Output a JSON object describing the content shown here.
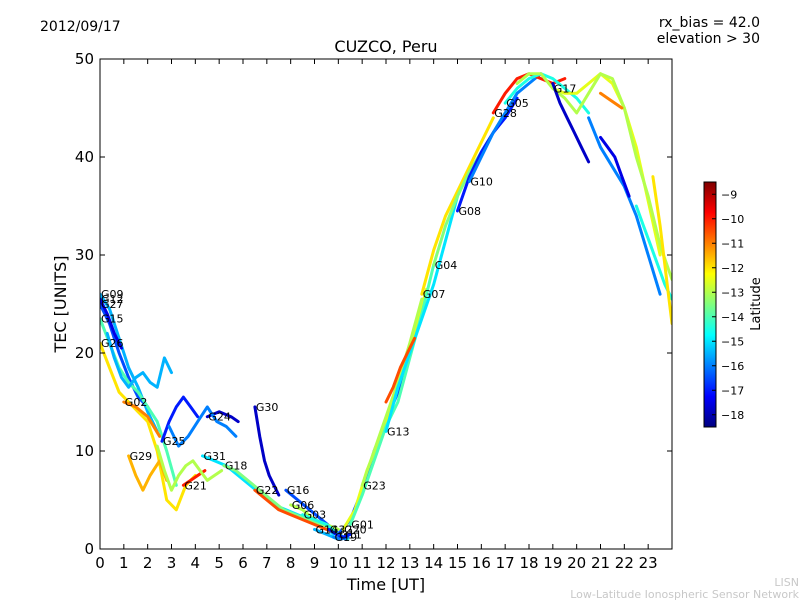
{
  "header": {
    "date": "2012/09/17",
    "rx_bias": "rx_bias = 42.0",
    "elevation": "elevation > 30"
  },
  "footer": {
    "credit_line1": "LISN",
    "credit_line2": "Low-Latitude Ionospheric Sensor Network"
  },
  "chart_data": {
    "type": "scatter",
    "title": "CUZCO, Peru",
    "xlabel": "Time [UT]",
    "ylabel": "TEC [UNITS]",
    "xlim": [
      0,
      24
    ],
    "ylim": [
      0,
      50
    ],
    "xticks": [
      0,
      1,
      2,
      3,
      4,
      5,
      6,
      7,
      8,
      9,
      10,
      11,
      12,
      13,
      14,
      15,
      16,
      17,
      18,
      19,
      20,
      21,
      22,
      23
    ],
    "yticks": [
      0,
      10,
      20,
      30,
      40,
      50
    ],
    "colorbar": {
      "label": "Latitude",
      "range": [
        -18.5,
        -8.5
      ],
      "ticks": [
        -9,
        -10,
        -11,
        -12,
        -13,
        -14,
        -15,
        -16,
        -17,
        -18
      ],
      "stops": [
        "#00007f",
        "#0000ff",
        "#007fff",
        "#00ffff",
        "#7fff7f",
        "#ffff00",
        "#ff7f00",
        "#ff0000",
        "#7f0000"
      ],
      "colormap_note": "-18 blue to -9 red"
    },
    "series": [
      {
        "name": "G09",
        "lat": -15.5,
        "x": [
          0.0,
          0.4,
          0.8,
          1.2,
          1.6,
          2.0,
          2.4
        ],
        "y": [
          26.0,
          24.5,
          21.5,
          18.5,
          16.5,
          14.0,
          12.0
        ]
      },
      {
        "name": "G27",
        "lat": -16.5,
        "x": [
          0.0,
          0.4,
          0.8,
          1.2,
          1.6,
          2.0
        ],
        "y": [
          25.0,
          23.0,
          20.0,
          17.5,
          15.5,
          14.5
        ]
      },
      {
        "name": "G12",
        "lat": -17.5,
        "x": [
          0.0,
          0.3,
          0.6,
          0.9
        ],
        "y": [
          25.5,
          24.0,
          22.0,
          20.5
        ]
      },
      {
        "name": "G15",
        "lat": -14.0,
        "x": [
          0.0,
          0.4,
          0.8,
          1.2,
          1.6,
          2.0,
          2.4,
          2.8,
          3.2
        ],
        "y": [
          23.5,
          21.0,
          18.5,
          17.0,
          16.0,
          14.5,
          13.0,
          10.0,
          6.5
        ]
      },
      {
        "name": "G26",
        "lat": -12.0,
        "x": [
          0.0,
          0.4,
          0.8,
          1.2,
          1.6,
          2.0,
          2.4,
          2.8,
          3.2,
          3.6,
          4.0
        ],
        "y": [
          21.0,
          18.5,
          16.0,
          15.0,
          14.0,
          13.0,
          10.0,
          5.0,
          4.0,
          6.5,
          7.5
        ]
      },
      {
        "name": "G02",
        "lat": -11.0,
        "x": [
          1.0,
          1.5,
          2.0,
          2.5
        ],
        "y": [
          15.0,
          14.5,
          13.5,
          11.5
        ]
      },
      {
        "name": "G29",
        "lat": -11.5,
        "x": [
          1.2,
          1.5,
          1.8,
          2.1,
          2.5,
          2.8
        ],
        "y": [
          9.5,
          7.5,
          6.0,
          7.5,
          9.0,
          7.0
        ]
      },
      {
        "name": "G25",
        "lat": -17.0,
        "x": [
          2.6,
          2.9,
          3.2,
          3.5,
          3.8,
          4.1
        ],
        "y": [
          11.0,
          13.0,
          14.5,
          15.5,
          14.5,
          13.5
        ]
      },
      {
        "name": "G21",
        "lat": -10.0,
        "x": [
          3.5,
          3.8,
          4.1,
          4.4
        ],
        "y": [
          6.5,
          7.0,
          7.5,
          8.0
        ]
      },
      {
        "name": "G24",
        "lat": -17.8,
        "x": [
          4.5,
          5.0,
          5.5,
          5.8
        ],
        "y": [
          13.5,
          14.0,
          13.5,
          13.0
        ]
      },
      {
        "name": "G31",
        "lat": -15.0,
        "x": [
          4.3,
          4.8,
          5.3,
          5.8,
          6.3,
          6.8,
          7.3,
          7.8,
          8.3,
          8.8,
          9.3,
          9.8
        ],
        "y": [
          9.5,
          9.0,
          8.5,
          7.5,
          6.5,
          5.5,
          4.5,
          4.0,
          3.5,
          3.0,
          2.5,
          1.5
        ]
      },
      {
        "name": "G18",
        "lat": -13.5,
        "x": [
          5.2,
          5.7,
          6.2,
          6.7,
          7.2,
          7.7,
          8.2,
          8.7,
          9.2,
          9.7
        ],
        "y": [
          8.5,
          8.0,
          7.0,
          6.0,
          5.0,
          4.0,
          3.5,
          3.0,
          2.5,
          2.0
        ]
      },
      {
        "name": "G30",
        "lat": -17.8,
        "x": [
          6.5,
          6.7,
          6.9,
          7.1,
          7.3,
          7.5
        ],
        "y": [
          14.5,
          11.5,
          9.0,
          7.5,
          6.5,
          5.5
        ]
      },
      {
        "name": "G22",
        "lat": -10.5,
        "x": [
          6.5,
          7.0,
          7.5,
          8.0,
          8.5,
          9.0,
          9.5,
          10.0
        ],
        "y": [
          6.0,
          5.0,
          4.0,
          3.5,
          3.0,
          2.5,
          2.0,
          1.5
        ]
      },
      {
        "name": "G16",
        "lat": -16.5,
        "x": [
          7.8,
          8.3,
          8.8,
          9.3,
          9.8,
          10.3
        ],
        "y": [
          6.0,
          5.0,
          4.0,
          3.0,
          2.0,
          1.0
        ]
      },
      {
        "name": "G06",
        "lat": -13.0,
        "x": [
          8.0,
          8.5,
          9.0,
          9.5,
          10.0
        ],
        "y": [
          4.5,
          4.0,
          3.0,
          2.5,
          2.0
        ]
      },
      {
        "name": "G03",
        "lat": -14.5,
        "x": [
          8.5,
          9.0,
          9.5,
          10.0,
          10.4
        ],
        "y": [
          3.5,
          3.0,
          2.5,
          1.5,
          1.0
        ]
      },
      {
        "name": "G14",
        "lat": -15.5,
        "x": [
          9.0,
          9.5,
          10.0
        ],
        "y": [
          2.0,
          1.5,
          1.0
        ]
      },
      {
        "name": "G19",
        "lat": -16.0,
        "x": [
          9.8,
          10.1,
          10.4
        ],
        "y": [
          1.2,
          1.0,
          1.2
        ]
      },
      {
        "name": "G32",
        "lat": -17.0,
        "x": [
          9.6,
          9.9,
          10.2,
          10.5
        ],
        "y": [
          2.0,
          1.5,
          1.2,
          1.5
        ]
      },
      {
        "name": "G11",
        "lat": -16.5,
        "x": [
          10.0,
          10.5,
          11.0,
          11.5,
          12.0,
          12.5,
          13.0,
          13.5
        ],
        "y": [
          1.5,
          3.0,
          6.0,
          10.0,
          13.0,
          16.0,
          20.5,
          25.0
        ]
      },
      {
        "name": "G20",
        "lat": -12.5,
        "x": [
          10.2,
          10.7,
          11.2,
          11.7,
          12.2,
          12.7,
          13.2,
          13.7
        ],
        "y": [
          2.0,
          4.0,
          8.0,
          11.0,
          14.5,
          18.0,
          22.0,
          26.5
        ]
      },
      {
        "name": "G01",
        "lat": -14.0,
        "x": [
          10.5,
          11.0,
          11.5,
          12.0,
          12.5,
          13.0,
          13.5,
          14.0
        ],
        "y": [
          2.5,
          5.5,
          9.0,
          12.5,
          15.0,
          19.5,
          24.0,
          29.0
        ]
      },
      {
        "name": "G23",
        "lat": -13.0,
        "x": [
          11.0,
          11.5,
          12.0,
          12.5,
          13.0,
          13.5
        ],
        "y": [
          6.5,
          10.0,
          13.5,
          17.0,
          21.0,
          25.5
        ]
      },
      {
        "name": "G13",
        "lat": -15.0,
        "x": [
          12.0,
          12.5,
          13.0,
          13.5,
          14.0,
          14.5,
          15.0
        ],
        "y": [
          12.0,
          16.5,
          20.0,
          23.5,
          27.0,
          31.5,
          36.0
        ]
      },
      {
        "name": "G07",
        "lat": -12.0,
        "x": [
          13.5,
          14.0,
          14.5,
          15.0,
          15.5,
          16.0,
          16.5
        ],
        "y": [
          26.0,
          30.5,
          34.0,
          36.5,
          39.0,
          41.5,
          44.0
        ]
      },
      {
        "name": "G04",
        "lat": -13.5,
        "x": [
          14.0,
          14.5,
          15.0,
          15.5,
          16.0,
          16.5,
          17.0
        ],
        "y": [
          29.0,
          33.0,
          36.0,
          38.5,
          40.5,
          42.5,
          44.5
        ]
      },
      {
        "name": "G08",
        "lat": -17.0,
        "x": [
          15.0,
          15.5,
          16.0,
          16.5,
          17.0,
          17.5
        ],
        "y": [
          34.5,
          38.0,
          40.5,
          42.5,
          44.0,
          46.0
        ]
      },
      {
        "name": "G10",
        "lat": -16.0,
        "x": [
          15.5,
          16.0,
          16.5,
          17.0,
          17.5,
          18.0,
          18.5
        ],
        "y": [
          37.5,
          40.0,
          42.5,
          44.5,
          46.5,
          47.5,
          48.5
        ]
      },
      {
        "name": "G28",
        "lat": -10.0,
        "x": [
          16.5,
          17.0,
          17.5,
          18.0,
          18.5,
          19.0,
          19.5
        ],
        "y": [
          44.5,
          46.5,
          48.0,
          48.5,
          48.0,
          47.5,
          48.0
        ]
      },
      {
        "name": "G05",
        "lat": -14.5,
        "x": [
          17.0,
          17.5,
          18.0,
          18.5,
          19.0,
          19.5,
          20.0,
          20.5
        ],
        "y": [
          45.5,
          47.0,
          48.0,
          48.5,
          48.0,
          47.0,
          46.0,
          44.5
        ]
      },
      {
        "name": "G17",
        "lat": -12.5,
        "x": [
          19.0,
          19.5,
          20.0,
          20.5,
          21.0,
          21.5,
          22.0,
          22.5,
          23.0,
          23.5
        ],
        "y": [
          47.0,
          46.5,
          46.5,
          47.5,
          48.5,
          47.5,
          45.0,
          41.0,
          35.5,
          30.0
        ]
      },
      {
        "name": "",
        "lat": -13.0,
        "x": [
          17.5,
          18.0,
          18.5,
          19.0,
          19.5,
          20.0,
          20.5,
          21.0,
          21.5,
          22.0,
          22.5,
          23.0,
          23.5,
          24.0
        ],
        "y": [
          47.5,
          48.5,
          48.5,
          47.0,
          46.0,
          44.5,
          46.5,
          48.5,
          48.0,
          45.0,
          40.0,
          36.0,
          31.0,
          27.5
        ]
      },
      {
        "name": "",
        "lat": -16.0,
        "x": [
          20.5,
          21.0,
          21.5,
          22.0,
          22.5,
          23.0,
          23.5
        ],
        "y": [
          44.0,
          41.0,
          39.0,
          37.0,
          34.0,
          30.0,
          26.0
        ]
      },
      {
        "name": "",
        "lat": -17.8,
        "x": [
          19.0,
          19.3,
          19.6,
          19.9,
          20.2,
          20.5
        ],
        "y": [
          47.5,
          45.5,
          44.0,
          42.5,
          41.0,
          39.5
        ]
      },
      {
        "name": "",
        "lat": -11.0,
        "x": [
          21.0,
          21.3,
          21.6,
          21.9
        ],
        "y": [
          46.5,
          46.0,
          45.5,
          45.0
        ]
      },
      {
        "name": "",
        "lat": -14.5,
        "x": [
          22.5,
          22.8,
          23.1,
          23.4,
          23.7,
          24.0
        ],
        "y": [
          35.0,
          33.0,
          31.0,
          29.0,
          27.0,
          25.5
        ]
      },
      {
        "name": "",
        "lat": -12.0,
        "x": [
          23.2,
          23.5,
          23.8,
          24.0
        ],
        "y": [
          38.0,
          33.0,
          27.0,
          23.0
        ]
      },
      {
        "name": "",
        "lat": -17.5,
        "x": [
          21.0,
          21.3,
          21.6,
          21.9,
          22.2
        ],
        "y": [
          42.0,
          41.0,
          40.0,
          38.0,
          36.0
        ]
      },
      {
        "name": "",
        "lat": -10.5,
        "x": [
          12.0,
          12.3,
          12.6,
          12.9,
          13.2
        ],
        "y": [
          15.0,
          16.5,
          18.5,
          20.0,
          21.5
        ]
      },
      {
        "name": "",
        "lat": -15.5,
        "x": [
          0.3,
          0.6,
          0.9,
          1.2,
          1.5,
          1.8,
          2.1,
          2.4,
          2.7,
          3.0
        ],
        "y": [
          22.0,
          19.5,
          17.5,
          16.5,
          17.5,
          18.0,
          17.0,
          16.5,
          19.5,
          18.0
        ]
      },
      {
        "name": "",
        "lat": -16.0,
        "x": [
          2.9,
          3.3,
          3.7,
          4.1,
          4.5,
          4.9,
          5.3,
          5.7
        ],
        "y": [
          12.5,
          10.5,
          11.5,
          13.0,
          14.5,
          13.0,
          12.5,
          11.5
        ]
      },
      {
        "name": "",
        "lat": -13.0,
        "x": [
          2.4,
          2.7,
          3.0,
          3.3,
          3.6,
          3.9,
          4.2,
          4.5,
          4.8,
          5.1
        ],
        "y": [
          10.5,
          8.0,
          6.0,
          7.5,
          8.5,
          9.0,
          8.0,
          7.0,
          7.5,
          8.0
        ]
      }
    ]
  }
}
